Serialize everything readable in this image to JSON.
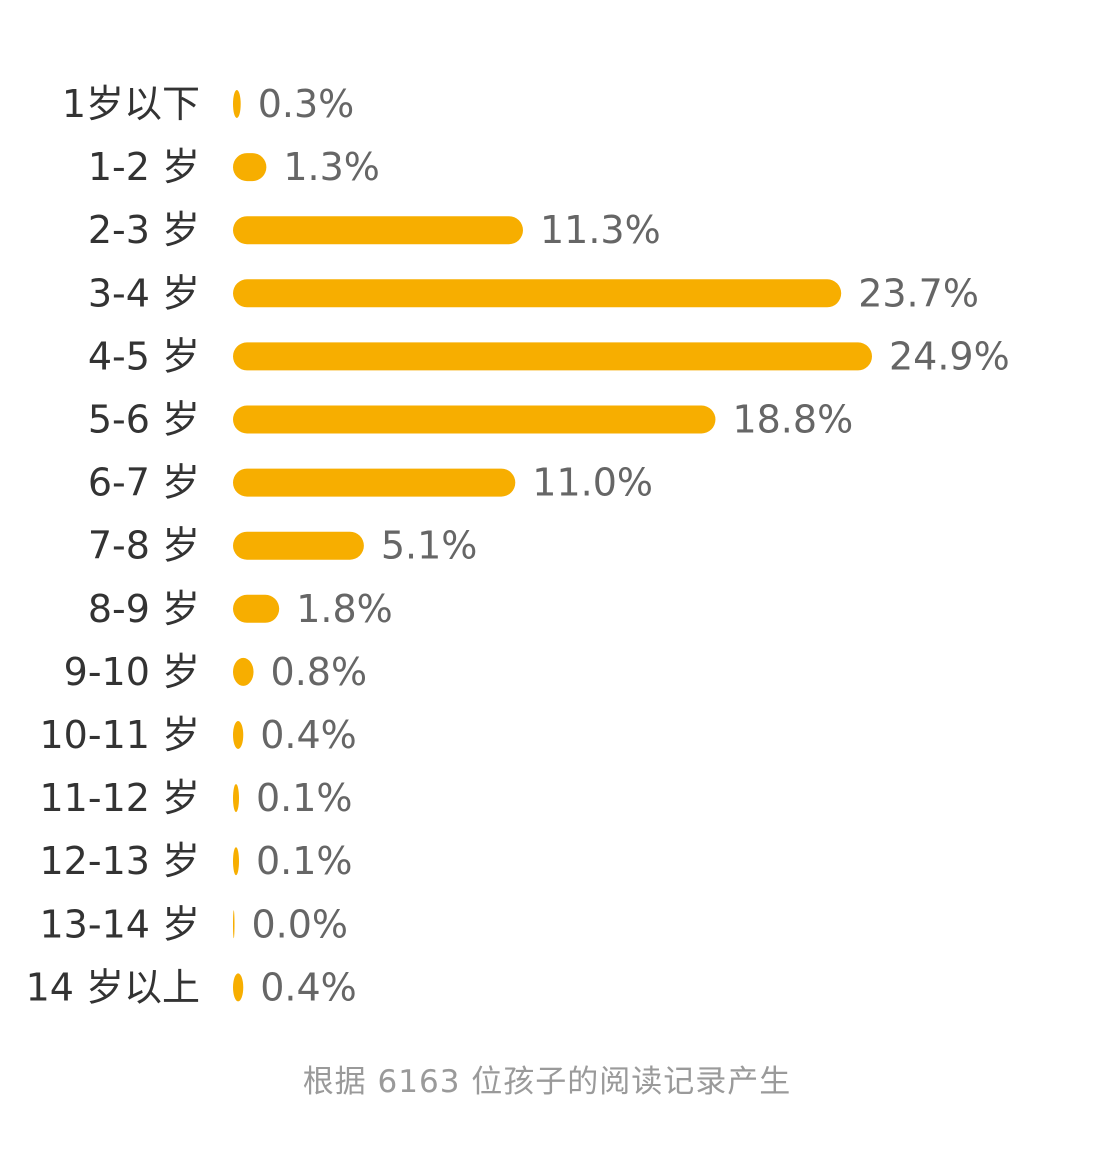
{
  "chart_data": {
    "type": "bar",
    "orientation": "horizontal",
    "categories": [
      "1岁以下",
      "1-2 岁",
      "2-3 岁",
      "3-4 岁",
      "4-5 岁",
      "5-6 岁",
      "6-7 岁",
      "7-8 岁",
      "8-9 岁",
      "9-10 岁",
      "10-11 岁",
      "11-12 岁",
      "12-13 岁",
      "13-14 岁",
      "14 岁以上"
    ],
    "values": [
      0.3,
      1.3,
      11.3,
      23.7,
      24.9,
      18.8,
      11.0,
      5.1,
      1.8,
      0.8,
      0.4,
      0.1,
      0.1,
      0.0,
      0.4
    ],
    "value_labels": [
      "0.3%",
      "1.3%",
      "11.3%",
      "23.7%",
      "24.9%",
      "18.8%",
      "11.0%",
      "5.1%",
      "1.8%",
      "0.8%",
      "0.4%",
      "0.1%",
      "0.1%",
      "0.0%",
      "0.4%"
    ],
    "unit": "%",
    "xlim": [
      0,
      24.9
    ],
    "grid": false,
    "legend": "none",
    "bar_color": "#F7AE00"
  },
  "footnote": "根据 6163 位孩子的阅读记录产生"
}
